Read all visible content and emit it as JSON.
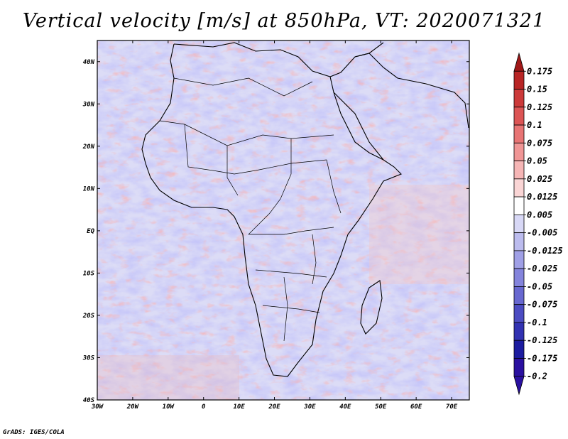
{
  "title": "Vertical velocity [m/s] at 850hPa, VT: 2020071321",
  "credit": "GrADS: IGES/COLA",
  "map": {
    "lat_labels": [
      "40N",
      "30N",
      "20N",
      "10N",
      "EQ",
      "10S",
      "20S",
      "30S",
      "40S"
    ],
    "lon_labels": [
      "30W",
      "20W",
      "10W",
      "0",
      "10E",
      "20E",
      "30E",
      "40E",
      "50E",
      "60E",
      "70E"
    ],
    "lat_range": [
      -40,
      45
    ],
    "lon_range": [
      -30,
      75
    ]
  },
  "colorbar": {
    "labels": [
      "0.175",
      "0.15",
      "0.125",
      "0.1",
      "0.075",
      "0.05",
      "0.025",
      "0.0125",
      "0.005",
      "-0.005",
      "-0.0125",
      "-0.025",
      "-0.05",
      "-0.075",
      "-0.1",
      "-0.125",
      "-0.175",
      "-0.2"
    ],
    "colors": [
      "#a01818",
      "#b82525",
      "#cc3a3a",
      "#dc5555",
      "#e87575",
      "#f09696",
      "#f6b6b6",
      "#fad5d5",
      "#ffffff",
      "#d8d8f6",
      "#bcbcee",
      "#a0a0e6",
      "#8484dc",
      "#6868d0",
      "#4c4cc2",
      "#3232b2",
      "#1c1ca0",
      "#2a10a0"
    ]
  }
}
